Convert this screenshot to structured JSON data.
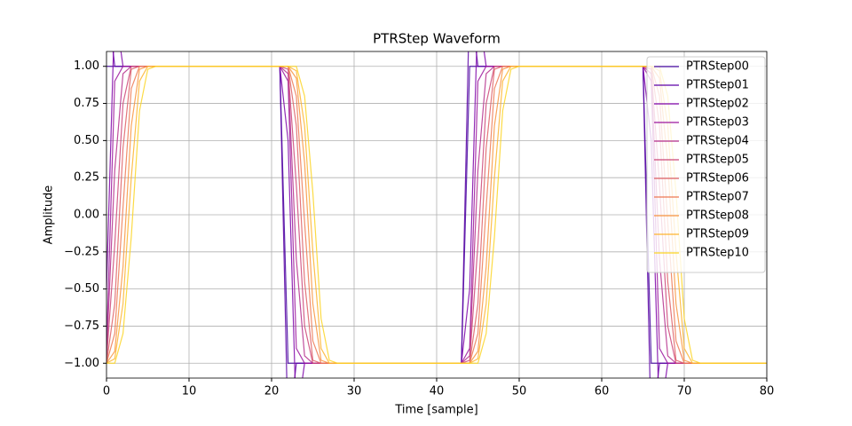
{
  "chart_data": {
    "type": "line",
    "title": "PTRStep Waveform",
    "xlabel": "Time [sample]",
    "ylabel": "Amplitude",
    "x": [
      0,
      1,
      2,
      3,
      4,
      5,
      6,
      7,
      8,
      9,
      10,
      11,
      12,
      13,
      14,
      15,
      16,
      17,
      18,
      19,
      20,
      21,
      22,
      23,
      24,
      25,
      26,
      27,
      28,
      29,
      30,
      31,
      32,
      33,
      34,
      35,
      36,
      37,
      38,
      39,
      40,
      41,
      42,
      43,
      44,
      45,
      46,
      47,
      48,
      49,
      50,
      51,
      52,
      53,
      54,
      55,
      56,
      57,
      58,
      59,
      60,
      61,
      62,
      63,
      64,
      65,
      66,
      67,
      68,
      69,
      70,
      71,
      72,
      73,
      74,
      75,
      76,
      77,
      78,
      79,
      80
    ],
    "xlim": [
      0,
      80
    ],
    "xticks": [
      0,
      10,
      20,
      30,
      40,
      50,
      60,
      70,
      80
    ],
    "ylim": [
      -1.1,
      1.1
    ],
    "yticks": [
      {
        "value": -1,
        "label": "−1.00"
      },
      {
        "value": -0.75,
        "label": "−0.75"
      },
      {
        "value": -0.5,
        "label": "−0.50"
      },
      {
        "value": -0.25,
        "label": "−0.25"
      },
      {
        "value": 0,
        "label": "0.00"
      },
      {
        "value": 0.25,
        "label": "0.25"
      },
      {
        "value": 0.5,
        "label": "0.50"
      },
      {
        "value": 0.75,
        "label": "0.75"
      },
      {
        "value": 1,
        "label": "1.00"
      }
    ],
    "grid": true,
    "legend": "upper right",
    "series": [
      {
        "name": "PTRStep00",
        "color": "#41049d",
        "values": [
          1,
          1,
          1,
          1,
          1,
          1,
          1,
          1,
          1,
          1,
          1,
          1,
          1,
          1,
          1,
          1,
          1,
          1,
          1,
          1,
          1,
          1,
          -1,
          -1,
          -1,
          -1,
          -1,
          -1,
          -1,
          -1,
          -1,
          -1,
          -1,
          -1,
          -1,
          -1,
          -1,
          -1,
          -1,
          -1,
          -1,
          -1,
          -1,
          -1,
          1,
          1,
          1,
          1,
          1,
          1,
          1,
          1,
          1,
          1,
          1,
          1,
          1,
          1,
          1,
          1,
          1,
          1,
          1,
          1,
          1,
          1,
          -1,
          -1,
          -1,
          -1,
          -1,
          -1,
          -1,
          -1,
          -1,
          -1,
          -1,
          -1,
          -1,
          -1,
          -1
        ]
      },
      {
        "name": "PTRStep01",
        "color": "#5c01a6",
        "values": [
          1.5,
          1,
          1,
          1,
          1,
          1,
          1,
          1,
          1,
          1,
          1,
          1,
          1,
          1,
          1,
          1,
          1,
          1,
          1,
          1,
          1,
          1,
          -1.5,
          -1,
          -1,
          -1,
          -1,
          -1,
          -1,
          -1,
          -1,
          -1,
          -1,
          -1,
          -1,
          -1,
          -1,
          -1,
          -1,
          -1,
          -1,
          -1,
          -1,
          -1,
          1.5,
          1,
          1,
          1,
          1,
          1,
          1,
          1,
          1,
          1,
          1,
          1,
          1,
          1,
          1,
          1,
          1,
          1,
          1,
          1,
          1,
          1,
          -1.5,
          -1,
          -1,
          -1,
          -1,
          -1,
          -1,
          -1,
          -1,
          -1,
          -1,
          -1,
          -1,
          -1,
          -1
        ]
      },
      {
        "name": "PTRStep02",
        "color": "#7e03a8",
        "values": [
          -0.5,
          1.4,
          1,
          1,
          1,
          1,
          1,
          1,
          1,
          1,
          1,
          1,
          1,
          1,
          1,
          1,
          1,
          1,
          1,
          1,
          1,
          1,
          0.5,
          -1.4,
          -1,
          -1,
          -1,
          -1,
          -1,
          -1,
          -1,
          -1,
          -1,
          -1,
          -1,
          -1,
          -1,
          -1,
          -1,
          -1,
          -1,
          -1,
          -1,
          -1,
          -0.5,
          1.4,
          1,
          1,
          1,
          1,
          1,
          1,
          1,
          1,
          1,
          1,
          1,
          1,
          1,
          1,
          1,
          1,
          1,
          1,
          1,
          1,
          0.5,
          -1.4,
          -1,
          -1,
          -1,
          -1,
          -1,
          -1,
          -1,
          -1,
          -1,
          -1,
          -1,
          -1,
          -1
        ]
      },
      {
        "name": "PTRStep03",
        "color": "#9c179e",
        "values": [
          -0.9,
          0.9,
          1,
          1,
          1,
          1,
          1,
          1,
          1,
          1,
          1,
          1,
          1,
          1,
          1,
          1,
          1,
          1,
          1,
          1,
          1,
          1,
          0.9,
          -0.9,
          -1,
          -1,
          -1,
          -1,
          -1,
          -1,
          -1,
          -1,
          -1,
          -1,
          -1,
          -1,
          -1,
          -1,
          -1,
          -1,
          -1,
          -1,
          -1,
          -1,
          -0.9,
          0.9,
          1,
          1,
          1,
          1,
          1,
          1,
          1,
          1,
          1,
          1,
          1,
          1,
          1,
          1,
          1,
          1,
          1,
          1,
          1,
          1,
          0.9,
          -0.9,
          -1,
          -1,
          -1,
          -1,
          -1,
          -1,
          -1,
          -1,
          -1,
          -1,
          -1,
          -1,
          -1
        ]
      },
      {
        "name": "PTRStep04",
        "color": "#b52f8c",
        "values": [
          -0.95,
          0.3,
          0.95,
          1,
          1,
          1,
          1,
          1,
          1,
          1,
          1,
          1,
          1,
          1,
          1,
          1,
          1,
          1,
          1,
          1,
          1,
          1,
          0.95,
          -0.3,
          -0.95,
          -1,
          -1,
          -1,
          -1,
          -1,
          -1,
          -1,
          -1,
          -1,
          -1,
          -1,
          -1,
          -1,
          -1,
          -1,
          -1,
          -1,
          -1,
          -1,
          -0.95,
          0.3,
          0.95,
          1,
          1,
          1,
          1,
          1,
          1,
          1,
          1,
          1,
          1,
          1,
          1,
          1,
          1,
          1,
          1,
          1,
          1,
          1,
          0.95,
          -0.3,
          -0.95,
          -1,
          -1,
          -1,
          -1,
          -1,
          -1,
          -1,
          -1,
          -1,
          -1,
          -1,
          -1
        ]
      },
      {
        "name": "PTRStep05",
        "color": "#cc4778",
        "values": [
          -0.98,
          -0.2,
          0.75,
          1,
          1,
          1,
          1,
          1,
          1,
          1,
          1,
          1,
          1,
          1,
          1,
          1,
          1,
          1,
          1,
          1,
          1,
          1,
          0.98,
          0.2,
          -0.75,
          -1,
          -1,
          -1,
          -1,
          -1,
          -1,
          -1,
          -1,
          -1,
          -1,
          -1,
          -1,
          -1,
          -1,
          -1,
          -1,
          -1,
          -1,
          -1,
          -0.98,
          -0.2,
          0.75,
          1,
          1,
          1,
          1,
          1,
          1,
          1,
          1,
          1,
          1,
          1,
          1,
          1,
          1,
          1,
          1,
          1,
          1,
          1,
          0.98,
          0.2,
          -0.75,
          -1,
          -1,
          -1,
          -1,
          -1,
          -1,
          -1,
          -1,
          -1,
          -1,
          -1,
          -1
        ]
      },
      {
        "name": "PTRStep06",
        "color": "#de5f65",
        "values": [
          -1,
          -0.6,
          0.45,
          0.98,
          1,
          1,
          1,
          1,
          1,
          1,
          1,
          1,
          1,
          1,
          1,
          1,
          1,
          1,
          1,
          1,
          1,
          1,
          1,
          0.6,
          -0.45,
          -0.98,
          -1,
          -1,
          -1,
          -1,
          -1,
          -1,
          -1,
          -1,
          -1,
          -1,
          -1,
          -1,
          -1,
          -1,
          -1,
          -1,
          -1,
          -1,
          -1,
          -0.6,
          0.45,
          0.98,
          1,
          1,
          1,
          1,
          1,
          1,
          1,
          1,
          1,
          1,
          1,
          1,
          1,
          1,
          1,
          1,
          1,
          1,
          1,
          0.6,
          -0.45,
          -0.98,
          -1,
          -1,
          -1,
          -1,
          -1,
          -1,
          -1,
          -1,
          -1,
          -1,
          -1
        ]
      },
      {
        "name": "PTRStep07",
        "color": "#ed7953",
        "values": [
          -1,
          -0.8,
          0.05,
          0.85,
          1,
          1,
          1,
          1,
          1,
          1,
          1,
          1,
          1,
          1,
          1,
          1,
          1,
          1,
          1,
          1,
          1,
          1,
          1,
          0.8,
          -0.05,
          -0.85,
          -1,
          -1,
          -1,
          -1,
          -1,
          -1,
          -1,
          -1,
          -1,
          -1,
          -1,
          -1,
          -1,
          -1,
          -1,
          -1,
          -1,
          -1,
          -1,
          -0.8,
          0.05,
          0.85,
          1,
          1,
          1,
          1,
          1,
          1,
          1,
          1,
          1,
          1,
          1,
          1,
          1,
          1,
          1,
          1,
          1,
          1,
          1,
          0.8,
          -0.05,
          -0.85,
          -1,
          -1,
          -1,
          -1,
          -1,
          -1,
          -1,
          -1,
          -1,
          -1,
          -1
        ]
      },
      {
        "name": "PTRStep08",
        "color": "#f89540",
        "values": [
          -1,
          -0.92,
          -0.35,
          0.6,
          0.98,
          1,
          1,
          1,
          1,
          1,
          1,
          1,
          1,
          1,
          1,
          1,
          1,
          1,
          1,
          1,
          1,
          1,
          1,
          0.92,
          0.35,
          -0.6,
          -0.98,
          -1,
          -1,
          -1,
          -1,
          -1,
          -1,
          -1,
          -1,
          -1,
          -1,
          -1,
          -1,
          -1,
          -1,
          -1,
          -1,
          -1,
          -1,
          -0.92,
          -0.35,
          0.6,
          0.98,
          1,
          1,
          1,
          1,
          1,
          1,
          1,
          1,
          1,
          1,
          1,
          1,
          1,
          1,
          1,
          1,
          1,
          1,
          0.92,
          0.35,
          -0.6,
          -0.98,
          -1,
          -1,
          -1,
          -1,
          -1,
          -1,
          -1,
          -1,
          -1,
          -1
        ]
      },
      {
        "name": "PTRStep09",
        "color": "#fdb42f",
        "values": [
          -1,
          -0.97,
          -0.6,
          0.25,
          0.9,
          1,
          1,
          1,
          1,
          1,
          1,
          1,
          1,
          1,
          1,
          1,
          1,
          1,
          1,
          1,
          1,
          1,
          1,
          0.97,
          0.6,
          -0.25,
          -0.9,
          -1,
          -1,
          -1,
          -1,
          -1,
          -1,
          -1,
          -1,
          -1,
          -1,
          -1,
          -1,
          -1,
          -1,
          -1,
          -1,
          -1,
          -1,
          -0.97,
          -0.6,
          0.25,
          0.9,
          1,
          1,
          1,
          1,
          1,
          1,
          1,
          1,
          1,
          1,
          1,
          1,
          1,
          1,
          1,
          1,
          1,
          1,
          0.97,
          0.6,
          -0.25,
          -0.9,
          -1,
          -1,
          -1,
          -1,
          -1,
          -1,
          -1,
          -1,
          -1,
          -1
        ]
      },
      {
        "name": "PTRStep10",
        "color": "#fbd524",
        "values": [
          -1,
          -1,
          -0.8,
          -0.15,
          0.7,
          0.98,
          1,
          1,
          1,
          1,
          1,
          1,
          1,
          1,
          1,
          1,
          1,
          1,
          1,
          1,
          1,
          1,
          1,
          1,
          0.8,
          0.15,
          -0.7,
          -0.98,
          -1,
          -1,
          -1,
          -1,
          -1,
          -1,
          -1,
          -1,
          -1,
          -1,
          -1,
          -1,
          -1,
          -1,
          -1,
          -1,
          -1,
          -1,
          -0.8,
          -0.15,
          0.7,
          0.98,
          1,
          1,
          1,
          1,
          1,
          1,
          1,
          1,
          1,
          1,
          1,
          1,
          1,
          1,
          1,
          1,
          1,
          1,
          0.8,
          0.15,
          -0.7,
          -0.98,
          -1,
          -1,
          -1,
          -1,
          -1,
          -1,
          -1,
          -1,
          -1
        ]
      }
    ]
  }
}
